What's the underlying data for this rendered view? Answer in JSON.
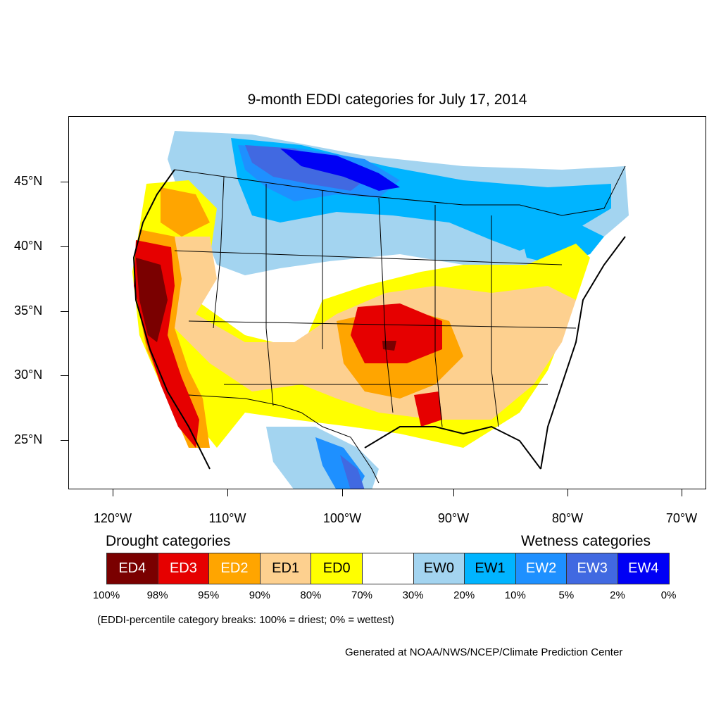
{
  "title": "9-month EDDI categories for July 17, 2014",
  "y_axis": {
    "labels": [
      "45°N",
      "40°N",
      "35°N",
      "30°N",
      "25°N"
    ]
  },
  "x_axis": {
    "labels": [
      "120°W",
      "110°W",
      "100°W",
      "90°W",
      "80°W",
      "70°W"
    ]
  },
  "legend": {
    "drought_heading": "Drought categories",
    "wetness_heading": "Wetness categories",
    "categories": [
      {
        "label": "ED4",
        "color": "#7a0000",
        "text_color": "#ffffff"
      },
      {
        "label": "ED3",
        "color": "#e60000",
        "text_color": "#ffffff"
      },
      {
        "label": "ED2",
        "color": "#ffa500",
        "text_color": "#ffffff"
      },
      {
        "label": "ED1",
        "color": "#fdd08f",
        "text_color": "#000000"
      },
      {
        "label": "ED0",
        "color": "#ffff00",
        "text_color": "#000000"
      },
      {
        "label": "",
        "color": "#ffffff",
        "text_color": "#000000"
      },
      {
        "label": "EW0",
        "color": "#a3d4f0",
        "text_color": "#000000"
      },
      {
        "label": "EW1",
        "color": "#00b4ff",
        "text_color": "#000000"
      },
      {
        "label": "EW2",
        "color": "#1e90ff",
        "text_color": "#ffffff"
      },
      {
        "label": "EW3",
        "color": "#4169e1",
        "text_color": "#ffffff"
      },
      {
        "label": "EW4",
        "color": "#0000f5",
        "text_color": "#ffffff"
      }
    ],
    "percentiles": [
      "100%",
      "98%",
      "95%",
      "90%",
      "80%",
      "70%",
      "30%",
      "20%",
      "10%",
      "5%",
      "2%",
      "0%"
    ]
  },
  "note": "(EDDI-percentile category breaks: 100% = driest; 0% = wettest)",
  "credit": "Generated at NOAA/NWS/NCEP/Climate Prediction Center"
}
